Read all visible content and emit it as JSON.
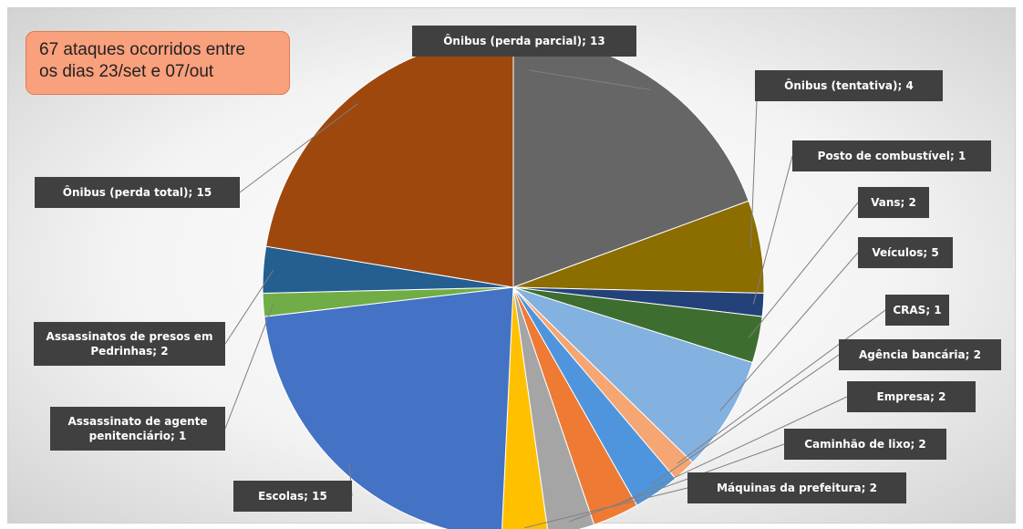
{
  "annotation": {
    "line1": "67 ataques ocorridos entre",
    "line2": "os dias 23/set e 07/out"
  },
  "chart_data": {
    "type": "pie",
    "title": "",
    "start_angle_deg": -90,
    "slices": [
      {
        "name": "Ônibus (perda parcial)",
        "value": 13,
        "color": "#666666",
        "label": "Ônibus (perda parcial); 13"
      },
      {
        "name": "Ônibus (tentativa)",
        "value": 4,
        "color": "#8c6d00",
        "label": "Ônibus (tentativa); 4"
      },
      {
        "name": "Posto de combustível",
        "value": 1,
        "color": "#24427a",
        "label": "Posto de combustível; 1"
      },
      {
        "name": "Vans",
        "value": 2,
        "color": "#3e6e2f",
        "label": "Vans; 2"
      },
      {
        "name": "Veículos",
        "value": 5,
        "color": "#83b1e0",
        "label": "Veículos; 5"
      },
      {
        "name": "CRAS",
        "value": 1,
        "color": "#f6a673",
        "label": "CRAS; 1"
      },
      {
        "name": "Agência bancária",
        "value": 2,
        "color": "#4f95dd",
        "label": "Agência bancária; 2"
      },
      {
        "name": "Empresa",
        "value": 2,
        "color": "#ee7a34",
        "label": "Empresa; 2"
      },
      {
        "name": "Caminhão de lixo",
        "value": 2,
        "color": "#a5a5a5",
        "label": "Caminhão de lixo; 2"
      },
      {
        "name": "Máquinas da prefeitura",
        "value": 2,
        "color": "#ffc000",
        "label": "Máquinas da prefeitura; 2"
      },
      {
        "name": "Escolas",
        "value": 15,
        "color": "#4472c4",
        "label": "Escolas; 15"
      },
      {
        "name": "Assassinato de agente penitenciário",
        "value": 1,
        "color": "#70ad47",
        "label": "Assassinato de agente penitenciário; 1"
      },
      {
        "name": "Assassinatos de presos em Pedrinhas",
        "value": 2,
        "color": "#255e91",
        "label": "Assassinatos de presos em Pedrinhas; 2"
      },
      {
        "name": "Ônibus (perda total)",
        "value": 15,
        "color": "#9e480e",
        "label": "Ônibus (perda total); 15"
      }
    ]
  }
}
